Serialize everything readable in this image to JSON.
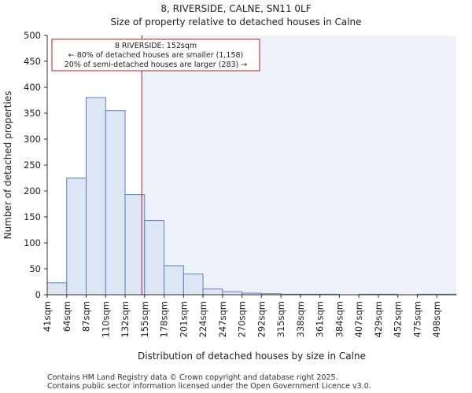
{
  "chart_data": {
    "type": "bar",
    "title": "8, RIVERSIDE, CALNE, SN11 0LF",
    "subtitle": "Size of property relative to detached houses in Calne",
    "xlabel": "Distribution of detached houses by size in Calne",
    "ylabel": "Number of detached properties",
    "categories": [
      "41sqm",
      "64sqm",
      "87sqm",
      "110sqm",
      "132sqm",
      "155sqm",
      "178sqm",
      "201sqm",
      "224sqm",
      "247sqm",
      "270sqm",
      "292sqm",
      "315sqm",
      "338sqm",
      "361sqm",
      "384sqm",
      "407sqm",
      "429sqm",
      "452sqm",
      "475sqm",
      "498sqm"
    ],
    "values": [
      23,
      225,
      380,
      355,
      193,
      143,
      56,
      40,
      11,
      6,
      3,
      2,
      1,
      1,
      1,
      0,
      1,
      1,
      0,
      1,
      1
    ],
    "ylim": [
      0,
      500
    ],
    "yticks": [
      0,
      50,
      100,
      150,
      200,
      250,
      300,
      350,
      400,
      450,
      500
    ],
    "grid": false,
    "bar_color": "#dce6f5",
    "bar_edge": "#5b7fc3",
    "highlight_shade": "#eef2fb",
    "marker": {
      "value_sqm": 152,
      "color": "#b22222"
    },
    "annotation": {
      "line1": "8 RIVERSIDE: 152sqm",
      "line2": "← 80% of detached houses are smaller (1,158)",
      "line3": "20% of semi-detached houses are larger (283) →"
    }
  },
  "footer": {
    "line1": "Contains HM Land Registry data © Crown copyright and database right 2025.",
    "line2": "Contains public sector information licensed under the Open Government Licence v3.0."
  }
}
